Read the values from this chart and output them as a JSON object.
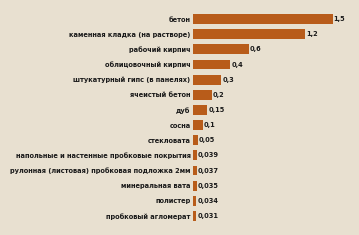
{
  "categories": [
    "бетон",
    "каменная кладка (на растворе)",
    "рабочий кирпич",
    "облицовочный кирпич",
    "штукатурный гипс (в панелях)",
    "ячеистый бетон",
    "дуб",
    "сосна",
    "стекловата",
    "напольные и настенные пробковые покрытия",
    "рулонная (листовая) пробковая подложка 2мм",
    "минеральная вата",
    "полистер",
    "пробковый агломерат"
  ],
  "values": [
    1.5,
    1.2,
    0.6,
    0.4,
    0.3,
    0.2,
    0.15,
    0.1,
    0.05,
    0.039,
    0.037,
    0.035,
    0.034,
    0.031
  ],
  "value_labels": [
    "1,5",
    "1,2",
    "0,6",
    "0,4",
    "0,3",
    "0,2",
    "0,15",
    "0,1",
    "0,05",
    "0,039",
    "0,037",
    "0,035",
    "0,034",
    "0,031"
  ],
  "bar_color": "#b85c1a",
  "label_color": "#1a1a1a",
  "value_color": "#1a1a1a",
  "background_color": "#e8e0d0",
  "xlim": [
    0,
    1.68
  ],
  "bar_height": 0.65,
  "label_fontsize": 4.8,
  "value_fontsize": 4.8
}
